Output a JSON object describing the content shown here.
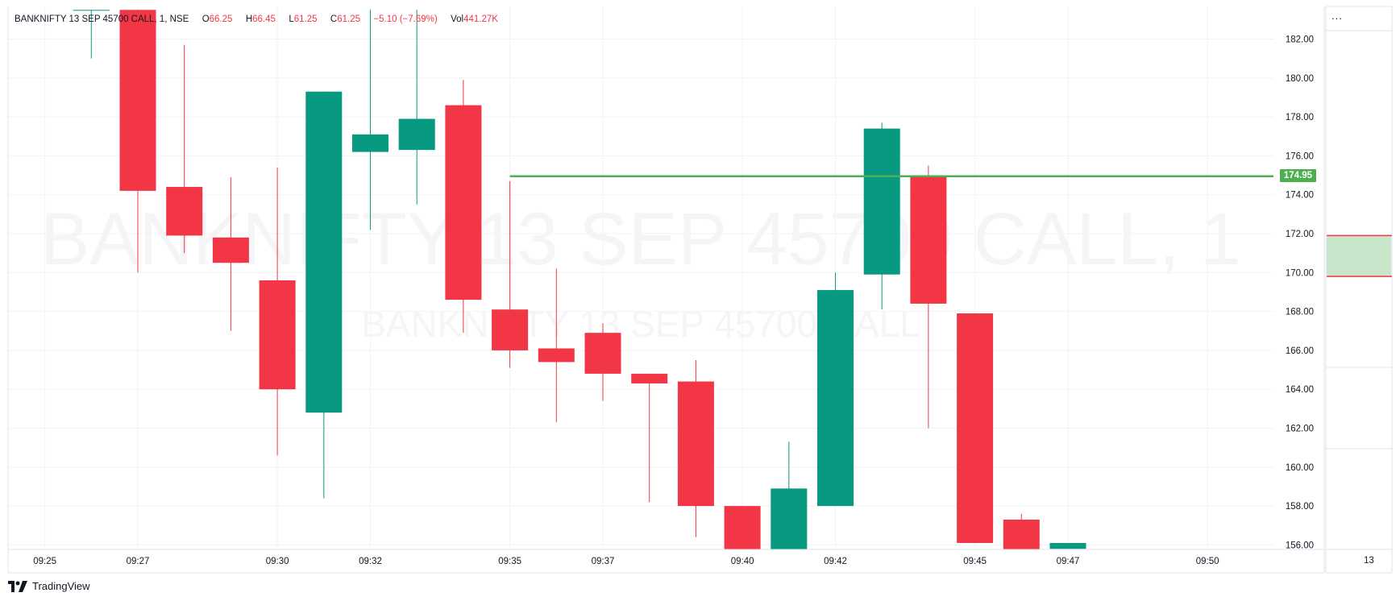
{
  "header": {
    "symbol": "BANKNIFTY 13 SEP 45700 CALL, 1, NSE",
    "open_label": "O",
    "open": "66.25",
    "high_label": "H",
    "high": "66.45",
    "low_label": "L",
    "low": "61.25",
    "close_label": "C",
    "close": "61.25",
    "change": "−5.10 (−7.69%)",
    "vol_label": "Vol",
    "volume": "441.27K"
  },
  "watermark": {
    "line1": "BANKNIFTY 13 SEP 45700 CALL, 1",
    "line2": "BANKNIFTY 13 SEP 45700 CALL"
  },
  "more_button": "...",
  "axis_count": "13",
  "branding": "TradingView",
  "colors": {
    "up": "#089981",
    "down": "#f23645",
    "hline": "#4caf50",
    "zone_fill": "#c8e6c9",
    "zone_line": "#f23645"
  },
  "chart_data": {
    "type": "candlestick",
    "ylim": [
      155.5,
      183.5
    ],
    "y_ticks": [
      "182.00",
      "180.00",
      "178.00",
      "176.00",
      "174.00",
      "172.00",
      "170.00",
      "168.00",
      "166.00",
      "164.00",
      "162.00",
      "160.00",
      "158.00",
      "156.00"
    ],
    "x_ticks": [
      {
        "label": "09:25",
        "index": -1
      },
      {
        "label": "09:27",
        "index": 1
      },
      {
        "label": "09:30",
        "index": 4
      },
      {
        "label": "09:32",
        "index": 6
      },
      {
        "label": "09:35",
        "index": 9
      },
      {
        "label": "09:37",
        "index": 11
      },
      {
        "label": "09:40",
        "index": 14
      },
      {
        "label": "09:42",
        "index": 16
      },
      {
        "label": "09:45",
        "index": 19
      },
      {
        "label": "09:47",
        "index": 21
      },
      {
        "label": "09:50",
        "index": 24
      }
    ],
    "candles": [
      {
        "time": "09:26",
        "open": 183.5,
        "high": 183.5,
        "low": 181.0,
        "close": 183.5
      },
      {
        "time": "09:27",
        "open": 183.5,
        "high": 183.5,
        "low": 170.0,
        "close": 174.2
      },
      {
        "time": "09:28",
        "open": 174.4,
        "high": 181.7,
        "low": 171.0,
        "close": 171.9
      },
      {
        "time": "09:29",
        "open": 171.8,
        "high": 174.9,
        "low": 167.0,
        "close": 170.5
      },
      {
        "time": "09:30",
        "open": 169.6,
        "high": 175.4,
        "low": 160.6,
        "close": 164.0
      },
      {
        "time": "09:31",
        "open": 162.8,
        "high": 179.3,
        "low": 158.4,
        "close": 179.3
      },
      {
        "time": "09:32",
        "open": 176.2,
        "high": 183.5,
        "low": 172.2,
        "close": 177.1
      },
      {
        "time": "09:33",
        "open": 176.3,
        "high": 183.5,
        "low": 173.5,
        "close": 177.9
      },
      {
        "time": "09:34",
        "open": 178.6,
        "high": 179.9,
        "low": 166.9,
        "close": 168.6
      },
      {
        "time": "09:35",
        "open": 168.1,
        "high": 174.7,
        "low": 165.1,
        "close": 166.0
      },
      {
        "time": "09:36",
        "open": 166.1,
        "high": 170.2,
        "low": 162.3,
        "close": 165.4
      },
      {
        "time": "09:37",
        "open": 166.9,
        "high": 167.4,
        "low": 163.4,
        "close": 164.8
      },
      {
        "time": "09:38",
        "open": 164.8,
        "high": 164.8,
        "low": 158.2,
        "close": 164.3
      },
      {
        "time": "09:39",
        "open": 164.4,
        "high": 165.5,
        "low": 156.4,
        "close": 158.0
      },
      {
        "time": "09:40",
        "open": 158.0,
        "high": 158.0,
        "low": 155.5,
        "close": 155.5
      },
      {
        "time": "09:41",
        "open": 155.5,
        "high": 161.3,
        "low": 155.5,
        "close": 158.9
      },
      {
        "time": "09:42",
        "open": 158.0,
        "high": 170.0,
        "low": 158.0,
        "close": 169.1
      },
      {
        "time": "09:43",
        "open": 169.9,
        "high": 177.7,
        "low": 168.1,
        "close": 177.4
      },
      {
        "time": "09:44",
        "open": 175.0,
        "high": 175.5,
        "low": 162.0,
        "close": 168.4
      },
      {
        "time": "09:45",
        "open": 167.9,
        "high": 167.9,
        "low": 156.1,
        "close": 156.1
      },
      {
        "time": "09:46",
        "open": 157.3,
        "high": 157.6,
        "low": 155.5,
        "close": 155.5
      },
      {
        "time": "09:47",
        "open": 155.8,
        "high": 156.1,
        "low": 155.5,
        "close": 156.1
      }
    ],
    "horizontal_line": {
      "value": 174.95,
      "label": "174.95",
      "from_index": 9
    },
    "zone": {
      "top": 171.9,
      "bottom": 169.8
    }
  }
}
